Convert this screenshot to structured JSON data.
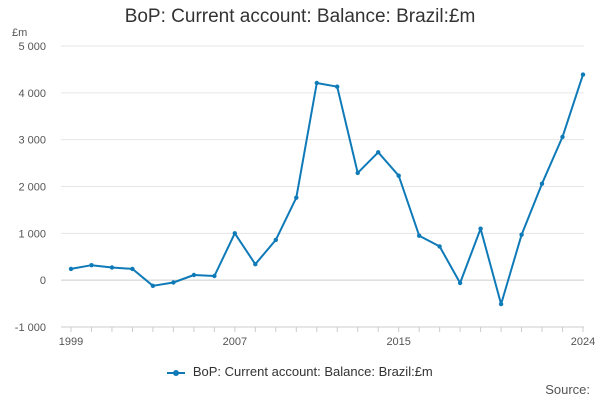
{
  "title": "BoP: Current account: Balance: Brazil:£m",
  "source_label": "Source:",
  "chart_data": {
    "type": "line",
    "title": "BoP: Current account: Balance: Brazil:£m",
    "unit_label": "£m",
    "xlabel": "",
    "ylabel": "",
    "xlim": [
      1999,
      2024
    ],
    "ylim": [
      -1000,
      5000
    ],
    "y_ticks": [
      -1000,
      0,
      1000,
      2000,
      3000,
      4000,
      5000
    ],
    "y_tick_labels": [
      "-1 000",
      "0",
      "1 000",
      "2 000",
      "3 000",
      "4 000",
      "5 000"
    ],
    "x_tick_labels": [
      "1999",
      "2007",
      "2015",
      "2024"
    ],
    "x_tick_label_years": [
      1999,
      2007,
      2015,
      2024
    ],
    "grid": "horizontal",
    "legend_position": "bottom-center",
    "color": "#0f7ab8",
    "series": [
      {
        "name": "BoP: Current account: Balance: Brazil:£m",
        "x": [
          1999,
          2000,
          2001,
          2002,
          2003,
          2004,
          2005,
          2006,
          2007,
          2008,
          2009,
          2010,
          2011,
          2012,
          2013,
          2014,
          2015,
          2016,
          2017,
          2018,
          2019,
          2020,
          2021,
          2022,
          2023,
          2024
        ],
        "values": [
          240,
          320,
          270,
          240,
          -120,
          -50,
          110,
          90,
          1000,
          340,
          860,
          1760,
          4210,
          4130,
          2290,
          2730,
          2230,
          950,
          720,
          -60,
          1100,
          -510,
          970,
          2060,
          3060,
          4390
        ]
      }
    ]
  }
}
